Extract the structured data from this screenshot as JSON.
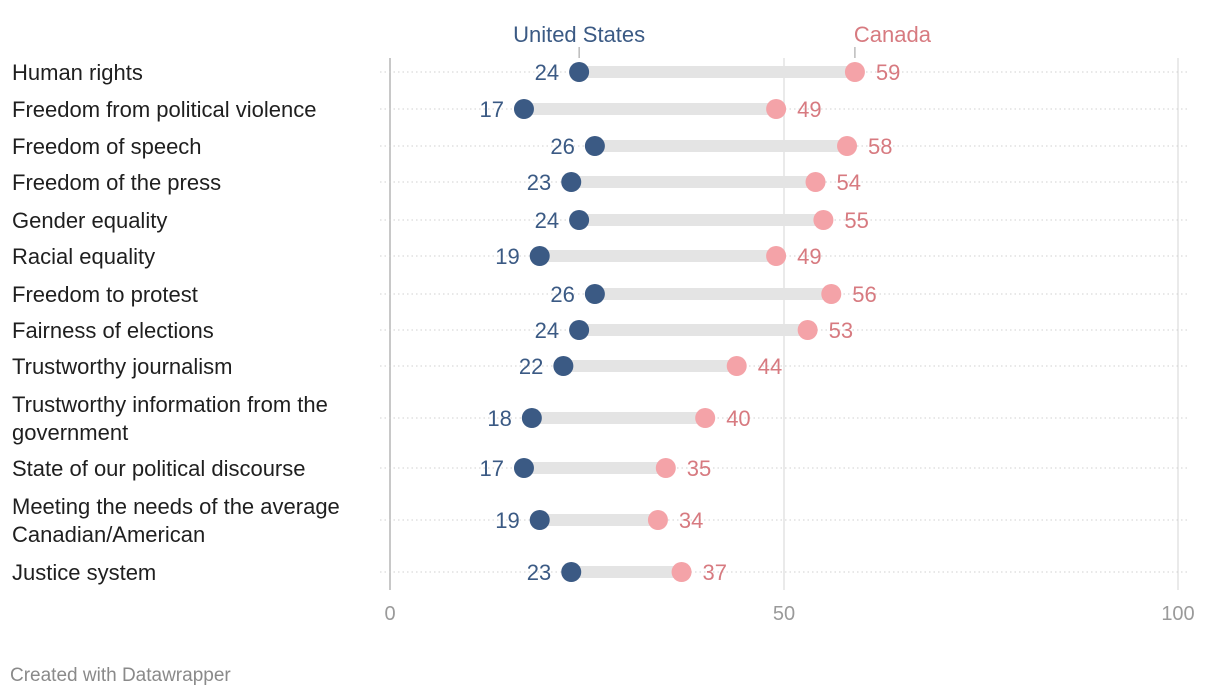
{
  "chart_data": {
    "type": "dumbbell",
    "series": [
      {
        "name": "United States",
        "color": "#3b5a84"
      },
      {
        "name": "Canada",
        "color": "#f4a3a8"
      }
    ],
    "categories": [
      [
        "Human rights"
      ],
      [
        "Freedom from political violence"
      ],
      [
        "Freedom of speech"
      ],
      [
        "Freedom of the press"
      ],
      [
        "Gender equality"
      ],
      [
        "Racial equality"
      ],
      [
        "Freedom to protest"
      ],
      [
        "Fairness of elections"
      ],
      [
        "Trustworthy journalism"
      ],
      [
        "Trustworthy information from the",
        "government"
      ],
      [
        "State of our political discourse"
      ],
      [
        "Meeting the needs of the average",
        "Canadian/American"
      ],
      [
        "Justice system"
      ]
    ],
    "us_values": [
      24,
      17,
      26,
      23,
      24,
      19,
      26,
      24,
      22,
      18,
      17,
      19,
      23
    ],
    "canada_values": [
      59,
      49,
      58,
      54,
      55,
      49,
      56,
      53,
      44,
      40,
      35,
      34,
      37
    ],
    "xlim": [
      0,
      100
    ],
    "xticks": [
      0,
      50,
      100
    ],
    "grid": true
  },
  "footer": "Created with Datawrapper"
}
